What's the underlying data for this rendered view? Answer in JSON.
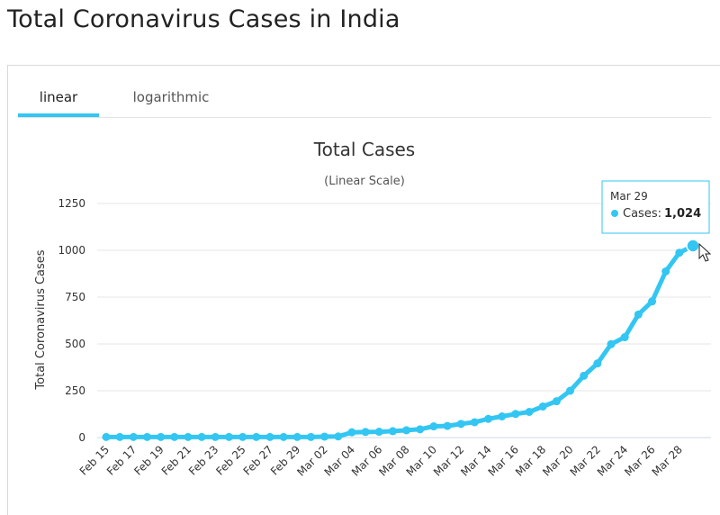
{
  "page": {
    "title": "Total Coronavirus Cases in India"
  },
  "tabs": [
    {
      "label": "linear"
    },
    {
      "label": "logarithmic"
    }
  ],
  "colors": {
    "series": "#33c6f2",
    "active_tab": "#33c6f2",
    "grid": "#e6e6e6"
  },
  "chart_data": {
    "type": "line",
    "title": "Total Cases",
    "subtitle": "(Linear Scale)",
    "xlabel": "",
    "ylabel": "Total Coronavirus Cases",
    "ylim": [
      0,
      1250
    ],
    "yticks": [
      0,
      250,
      500,
      750,
      1000,
      1250
    ],
    "grid": true,
    "x": [
      "Feb 15",
      "Feb 16",
      "Feb 17",
      "Feb 18",
      "Feb 19",
      "Feb 20",
      "Feb 21",
      "Feb 22",
      "Feb 23",
      "Feb 24",
      "Feb 25",
      "Feb 26",
      "Feb 27",
      "Feb 28",
      "Feb 29",
      "Mar 01",
      "Mar 02",
      "Mar 03",
      "Mar 04",
      "Mar 05",
      "Mar 06",
      "Mar 07",
      "Mar 08",
      "Mar 09",
      "Mar 10",
      "Mar 11",
      "Mar 12",
      "Mar 13",
      "Mar 14",
      "Mar 15",
      "Mar 16",
      "Mar 17",
      "Mar 18",
      "Mar 19",
      "Mar 20",
      "Mar 21",
      "Mar 22",
      "Mar 23",
      "Mar 24",
      "Mar 25",
      "Mar 26",
      "Mar 27",
      "Mar 28",
      "Mar 29"
    ],
    "xtick_labels": [
      "Feb 15",
      "Feb 17",
      "Feb 19",
      "Feb 21",
      "Feb 23",
      "Feb 25",
      "Feb 27",
      "Feb 29",
      "Mar 02",
      "Mar 04",
      "Mar 06",
      "Mar 08",
      "Mar 10",
      "Mar 12",
      "Mar 14",
      "Mar 16",
      "Mar 18",
      "Mar 20",
      "Mar 22",
      "Mar 24",
      "Mar 26",
      "Mar 28"
    ],
    "series": [
      {
        "name": "Cases",
        "values": [
          3,
          3,
          3,
          3,
          3,
          3,
          3,
          3,
          3,
          3,
          3,
          3,
          3,
          3,
          3,
          3,
          5,
          6,
          28,
          30,
          31,
          34,
          39,
          44,
          60,
          62,
          73,
          82,
          100,
          113,
          126,
          137,
          166,
          194,
          250,
          330,
          396,
          499,
          536,
          657,
          727,
          887,
          987,
          1024
        ]
      }
    ],
    "tooltip": {
      "date": "Mar 29",
      "label": "Cases:",
      "value": "1,024"
    }
  }
}
